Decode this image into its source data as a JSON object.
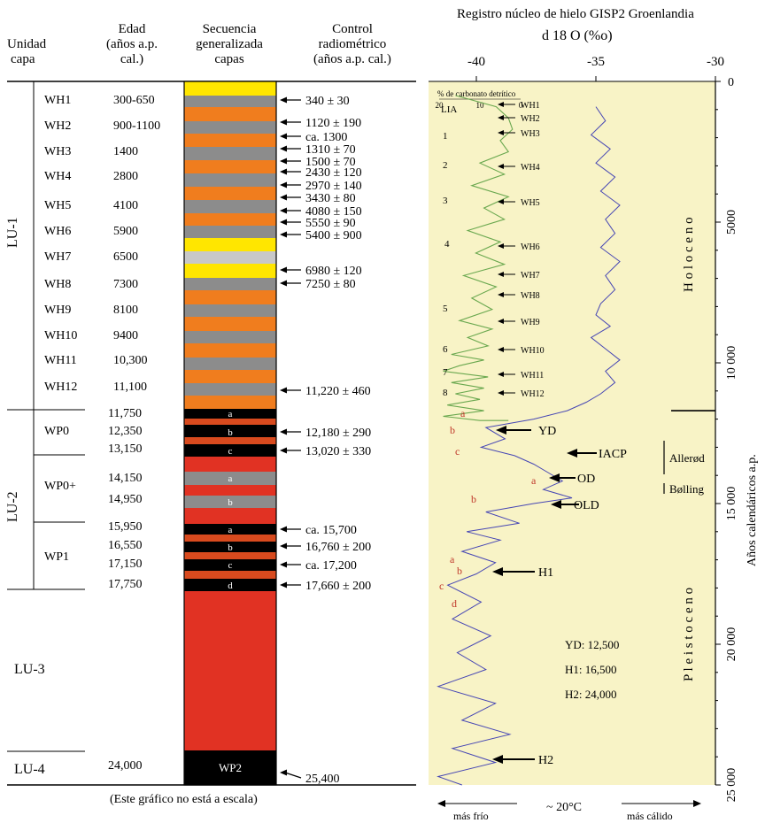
{
  "left_table": {
    "headers": {
      "unit": [
        "Unidad",
        "capa"
      ],
      "age": [
        "Edad",
        "(años a.p.",
        "cal.)"
      ],
      "sequence": [
        "Secuencia",
        "generalizada",
        "capas"
      ],
      "radiometric": [
        "Control",
        "radiométrico",
        "(años a.p. cal.)"
      ]
    },
    "lu_units": [
      {
        "label": "LU-1",
        "vertical": true
      },
      {
        "label": "LU-2",
        "vertical": true
      },
      {
        "label": "LU-3",
        "vertical": false
      },
      {
        "label": "LU-4",
        "vertical": false
      }
    ],
    "subunits": [
      "WP0",
      "WP0+",
      "WP1"
    ],
    "rows": [
      {
        "layer": "WH1",
        "age": "300-650"
      },
      {
        "layer": "WH2",
        "age": "900-1100"
      },
      {
        "layer": "WH3",
        "age": "1400"
      },
      {
        "layer": "WH4",
        "age": "2800"
      },
      {
        "layer": "WH5",
        "age": "4100"
      },
      {
        "layer": "WH6",
        "age": "5900"
      },
      {
        "layer": "WH7",
        "age": "6500"
      },
      {
        "layer": "WH8",
        "age": "7300"
      },
      {
        "layer": "WH9",
        "age": "8100"
      },
      {
        "layer": "WH10",
        "age": "9400"
      },
      {
        "layer": "WH11",
        "age": "10,300"
      },
      {
        "layer": "WH12",
        "age": "11,100"
      }
    ],
    "lu2_ages": [
      "11,750",
      "12,350",
      "13,150",
      "14,150",
      "14,950",
      "15,950",
      "16,550",
      "17,150",
      "17,750"
    ],
    "lu4_age": "24,000",
    "sequence_labels": [
      "a",
      "b",
      "c",
      "a",
      "b",
      "a",
      "b",
      "c",
      "d",
      "WP2"
    ],
    "radiometric": [
      "340 ± 30",
      "1120 ± 190",
      "ca. 1300",
      "1310 ± 70",
      "1500 ± 70",
      "2430 ± 120",
      "2970 ± 140",
      "3430 ± 80",
      "4080 ± 150",
      "5550 ± 90",
      "5400 ± 900",
      "6980 ± 120",
      "7250 ± 80",
      "11,220 ± 460",
      "12,180 ± 290",
      "13,020 ± 330",
      "ca. 15,700",
      "16,760 ± 200",
      "ca. 17,200",
      "17,660 ± 200",
      "25,400"
    ],
    "note": "(Este gráfico no está a escala)",
    "colors": {
      "yellow": "#ffe600",
      "gray": "#8c8c8c",
      "light_gray": "#c8c8c8",
      "orange": "#f07d1e",
      "red": "#e13223",
      "dark_orange": "#d84a1e",
      "black": "#000000"
    }
  },
  "chart_data": {
    "type": "line",
    "title": "Registro núcleo de hielo GISP2 Groenlandia",
    "xlabel": "d 18 O (%o)",
    "ylabel": "Años calendáricos a.p.",
    "x_ticks": [
      "-40",
      "-35",
      "-30"
    ],
    "xlim": [
      -42,
      -30
    ],
    "y_ticks": [
      "0",
      "5000",
      "10 000",
      "15 000",
      "20 000",
      "25 000"
    ],
    "ylim": [
      0,
      25000
    ],
    "background": "#f8f3c6",
    "carbonate_axis": {
      "label": "% de carbonato detrítico",
      "ticks": [
        "20",
        "10",
        "0"
      ]
    },
    "series": [
      {
        "name": "d18O",
        "color": "#4646b4",
        "x": [
          -35.0,
          -34.6,
          -35.2,
          -34.4,
          -35.0,
          -34.2,
          -34.8,
          -34.0,
          -34.6,
          -34.2,
          -34.8,
          -34.0,
          -34.6,
          -34.2,
          -34.8,
          -35.0,
          -34.4,
          -35.2,
          -34.6,
          -34.0,
          -34.6,
          -34.2,
          -34.8,
          -35.4,
          -36.2,
          -37.6,
          -39.6,
          -38.8,
          -39.8,
          -38.4,
          -37.6,
          -37.0,
          -36.4,
          -37.2,
          -36.0,
          -37.6,
          -39.6,
          -38.2,
          -40.4,
          -39.0,
          -40.6,
          -39.2,
          -40.0,
          -41.2,
          -39.8,
          -41.0,
          -39.4,
          -40.8,
          -39.6,
          -41.6,
          -39.2,
          -40.6,
          -38.6,
          -41.0,
          -39.2,
          -41.6,
          -40.6
        ],
        "y": [
          900,
          1400,
          1900,
          2400,
          2900,
          3400,
          3900,
          4400,
          4900,
          5400,
          5900,
          6400,
          6900,
          7400,
          7900,
          8300,
          8700,
          9100,
          9500,
          9900,
          10300,
          10700,
          11100,
          11400,
          11700,
          12000,
          12300,
          12700,
          13000,
          13300,
          13600,
          13900,
          14200,
          14500,
          14800,
          15000,
          15300,
          15700,
          16000,
          16300,
          16700,
          17100,
          17500,
          17900,
          18500,
          19100,
          19700,
          20300,
          20900,
          21500,
          22100,
          22700,
          23200,
          23700,
          24200,
          24700,
          25000
        ]
      },
      {
        "name": "carbonato",
        "color": "#6aa84f",
        "x": [
          16,
          6,
          3,
          2,
          5,
          3,
          10,
          4,
          12,
          3,
          9,
          4,
          13,
          5,
          11,
          4,
          14,
          6,
          12,
          7,
          15,
          7,
          13,
          8,
          17,
          9,
          15,
          19,
          8,
          17,
          9,
          16,
          10,
          18,
          9,
          19,
          10,
          3
        ],
        "y": [
          500,
          900,
          1300,
          1700,
          2100,
          2500,
          2900,
          3300,
          3700,
          4100,
          4500,
          4900,
          5300,
          5700,
          6100,
          6500,
          6900,
          7300,
          7700,
          8100,
          8500,
          8800,
          9100,
          9400,
          9700,
          9900,
          10100,
          10300,
          10500,
          10700,
          10900,
          11100,
          11300,
          11500,
          11700,
          11900,
          12050,
          12050
        ]
      }
    ],
    "carbonate_labels": [
      "LIA",
      "1",
      "2",
      "3",
      "4",
      "5",
      "6",
      "7",
      "8"
    ],
    "wh_markers": [
      "WH1",
      "WH2",
      "WH3",
      "WH4",
      "WH5",
      "WH6",
      "WH7",
      "WH8",
      "WH9",
      "WH10",
      "WH11",
      "WH12"
    ],
    "events": [
      "YD",
      "IACP",
      "OD",
      "OLD",
      "H1",
      "H2"
    ],
    "phases": [
      "Allerød",
      "Bølling"
    ],
    "epochs": [
      "H o l o c e n o",
      "P l e i s t o c e n o"
    ],
    "red_letters": [
      "a",
      "b",
      "c",
      "a",
      "b",
      "a",
      "b",
      "c",
      "d"
    ],
    "legend_values": [
      "YD:  12,500",
      "H1:  16,500",
      "H2:  24,000"
    ],
    "bottom": {
      "colder": "más frío",
      "temp": "~ 20°C",
      "warmer": "más cálido"
    }
  }
}
